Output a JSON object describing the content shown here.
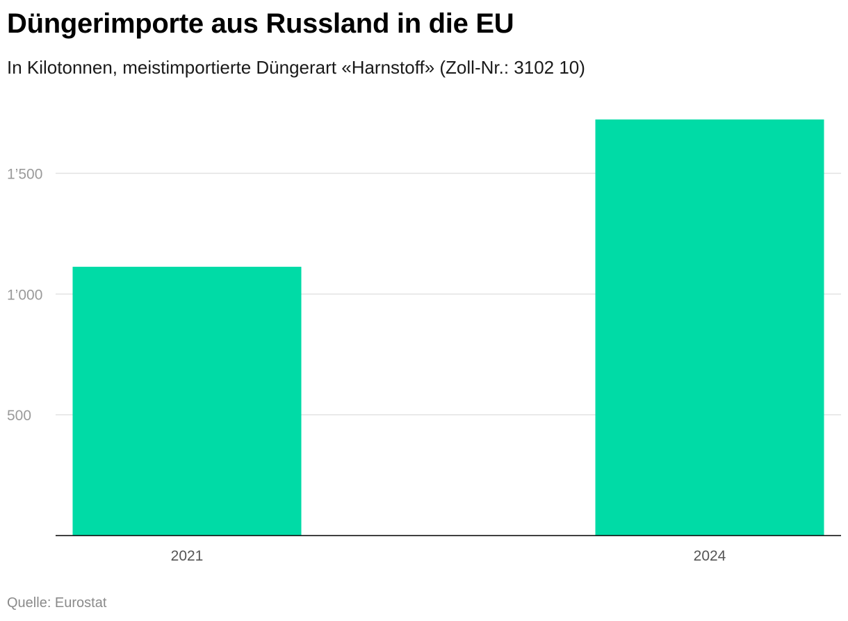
{
  "header": {
    "title": "Düngerimporte aus Russland in die EU",
    "subtitle": "In Kilotonnen, meistimportierte Düngerart «Harnstoff» (Zoll-Nr.: 3102 10)"
  },
  "footer": {
    "source": "Quelle: Eurostat"
  },
  "chart_data": {
    "type": "bar",
    "title": "Düngerimporte aus Russland in die EU",
    "subtitle": "In Kilotonnen, meistimportierte Düngerart «Harnstoff» (Zoll-Nr.: 3102 10)",
    "categories": [
      "2021",
      "2024"
    ],
    "values": [
      1113,
      1723
    ],
    "ylim": [
      0,
      1723
    ],
    "yticks": [
      500,
      1000,
      1500
    ],
    "ytick_labels": [
      "500",
      "1’000",
      "1’500"
    ],
    "xlabel": "",
    "ylabel": "",
    "grid": true,
    "legend": "none",
    "bar_color": "#00dba6",
    "grid_color": "#e2e2e2",
    "axis_color": "#000000"
  }
}
